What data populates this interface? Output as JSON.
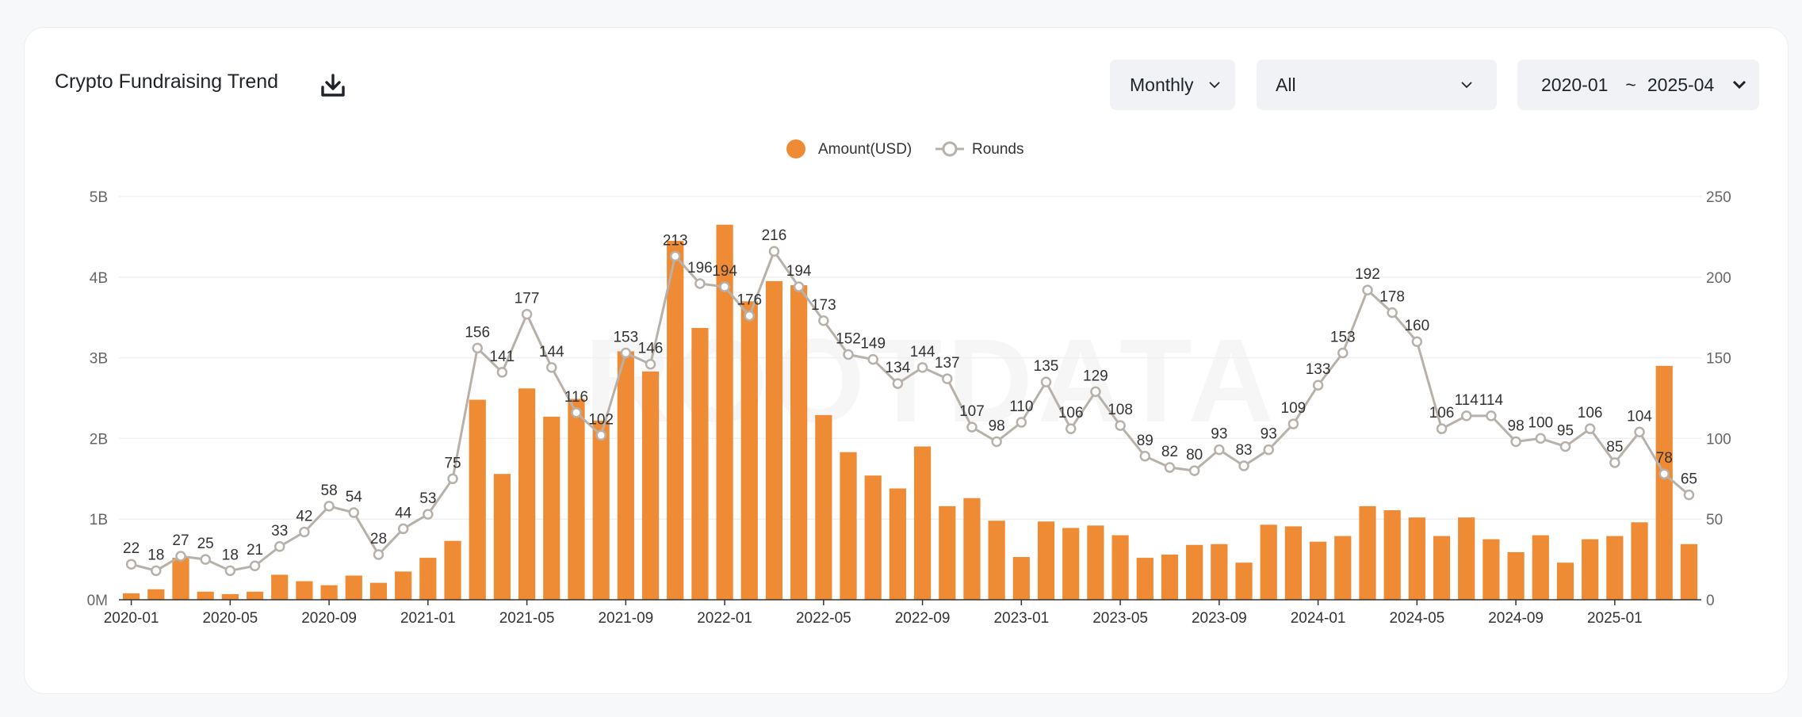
{
  "header": {
    "title": "Crypto Fundraising Trend",
    "download_icon": "download-icon"
  },
  "controls": {
    "period": "Monthly",
    "category": "All",
    "range_start": "2020-01",
    "range_sep": "~",
    "range_end": "2025-04"
  },
  "watermark": "ROOTDATA",
  "colors": {
    "bar": "#ef8b35",
    "line": "#b8b1aa",
    "grid": "#eef0f3",
    "axis_text": "#666666"
  },
  "chart_data": {
    "type": "bar",
    "legend": [
      "Amount(USD)",
      "Rounds"
    ],
    "legend_position": "top-center",
    "grid": true,
    "categories": [
      "2020-01",
      "2020-02",
      "2020-03",
      "2020-04",
      "2020-05",
      "2020-06",
      "2020-07",
      "2020-08",
      "2020-09",
      "2020-10",
      "2020-11",
      "2020-12",
      "2021-01",
      "2021-02",
      "2021-03",
      "2021-04",
      "2021-05",
      "2021-06",
      "2021-07",
      "2021-08",
      "2021-09",
      "2021-10",
      "2021-11",
      "2021-12",
      "2022-01",
      "2022-02",
      "2022-03",
      "2022-04",
      "2022-05",
      "2022-06",
      "2022-07",
      "2022-08",
      "2022-09",
      "2022-10",
      "2022-11",
      "2022-12",
      "2023-01",
      "2023-02",
      "2023-03",
      "2023-04",
      "2023-05",
      "2023-06",
      "2023-07",
      "2023-08",
      "2023-09",
      "2023-10",
      "2023-11",
      "2023-12",
      "2024-01",
      "2024-02",
      "2024-03",
      "2024-04",
      "2024-05",
      "2024-06",
      "2024-07",
      "2024-08",
      "2024-09",
      "2024-10",
      "2024-11",
      "2024-12",
      "2025-01",
      "2025-02",
      "2025-03",
      "2025-04"
    ],
    "x_tick_labels": [
      "2020-01",
      "2020-05",
      "2020-09",
      "2021-01",
      "2021-05",
      "2021-09",
      "2022-01",
      "2022-05",
      "2022-09",
      "2023-01",
      "2023-05",
      "2023-09",
      "2024-01",
      "2024-05",
      "2024-09",
      "2025-01"
    ],
    "y_left": {
      "ticks": [
        "0M",
        "1B",
        "2B",
        "3B",
        "4B",
        "5B"
      ],
      "ylim": [
        0,
        5000
      ]
    },
    "y_right": {
      "ticks": [
        "0",
        "50",
        "100",
        "150",
        "200",
        "250"
      ],
      "ylim": [
        0,
        250
      ]
    },
    "series": [
      {
        "name": "Amount(USD)",
        "type": "bar",
        "axis": "left",
        "unit": "M USD",
        "values": [
          80,
          130,
          520,
          100,
          70,
          100,
          310,
          230,
          180,
          300,
          210,
          350,
          520,
          730,
          2480,
          1560,
          2620,
          2270,
          2490,
          2220,
          3080,
          2830,
          4450,
          3370,
          4650,
          3700,
          3950,
          3900,
          2290,
          1830,
          1540,
          1380,
          1900,
          1160,
          1260,
          980,
          530,
          970,
          890,
          920,
          800,
          520,
          560,
          680,
          690,
          460,
          930,
          910,
          720,
          790,
          1160,
          1110,
          1020,
          790,
          1020,
          750,
          590,
          800,
          460,
          750,
          790,
          960,
          2900,
          690
        ]
      },
      {
        "name": "Rounds",
        "type": "line",
        "axis": "right",
        "show_labels": true,
        "values": [
          22,
          18,
          27,
          25,
          18,
          21,
          33,
          42,
          58,
          54,
          28,
          44,
          53,
          75,
          156,
          141,
          177,
          144,
          116,
          102,
          153,
          146,
          213,
          196,
          194,
          176,
          216,
          194,
          173,
          152,
          149,
          134,
          144,
          137,
          107,
          98,
          110,
          135,
          106,
          129,
          108,
          89,
          82,
          80,
          93,
          83,
          93,
          109,
          133,
          153,
          192,
          178,
          160,
          106,
          114,
          114,
          98,
          100,
          95,
          106,
          85,
          104,
          78,
          65
        ]
      }
    ]
  }
}
